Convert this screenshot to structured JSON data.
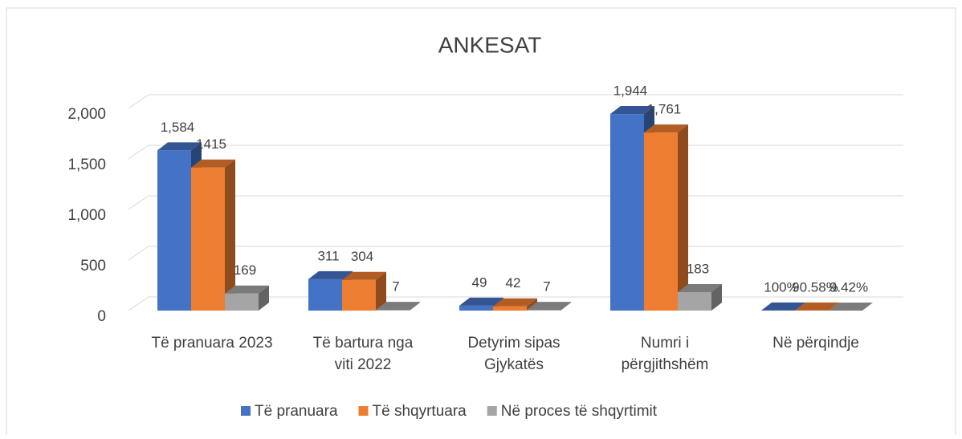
{
  "chart_data": {
    "type": "bar3d",
    "title": "ANKESAT",
    "categories": [
      "Të pranuara 2023",
      "Të bartura nga viti 2022",
      "Detyrim sipas Gjykatës",
      "Numri i përgjithshëm",
      "Në përqindje"
    ],
    "series": [
      {
        "name": "Të pranuara",
        "color": "#4472c4",
        "values": [
          1584,
          311,
          49,
          1944,
          1
        ],
        "value_labels": [
          "1,584",
          "311",
          "49",
          "1,944",
          "100%"
        ]
      },
      {
        "name": "Të shqyrtuara",
        "color": "#ed7d31",
        "values": [
          1415,
          304,
          42,
          1761,
          0.9058
        ],
        "value_labels": [
          "1415",
          "304",
          "42",
          "1,761",
          "90.58%"
        ]
      },
      {
        "name": "Në proces të shqyrtimit",
        "color": "#a5a5a5",
        "values": [
          169,
          7,
          7,
          183,
          0.0942
        ],
        "value_labels": [
          "169",
          "7",
          "7",
          "183",
          "9.42%"
        ]
      }
    ],
    "ylim": [
      0,
      2000
    ],
    "yticks": [
      0,
      500,
      {
        "value": 1000,
        "label": "1,000"
      },
      {
        "value": 1500,
        "label": "1,500"
      },
      {
        "value": 2000,
        "label": "2,000"
      }
    ],
    "grid": true,
    "legend": "bottom"
  }
}
